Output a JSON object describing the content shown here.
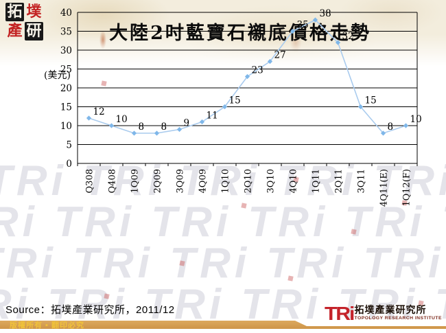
{
  "header": {
    "logo_chars": [
      "拓",
      "墣",
      "產",
      "研"
    ],
    "title": "大陸2吋藍寶石襯底價格走勢"
  },
  "chart_data": {
    "type": "line",
    "title": "大陸2吋藍寶石襯底價格走勢",
    "ylabel": "(美元)",
    "xlabel": "",
    "categories": [
      "Q308",
      "Q408",
      "1Q09",
      "2Q09",
      "3Q09",
      "4Q09",
      "1Q10",
      "2Q10",
      "3Q10",
      "4Q10",
      "1Q11",
      "2Q11",
      "3Q11",
      "4Q11(E)",
      "1Q12(F)"
    ],
    "values": [
      12,
      10,
      8,
      8,
      9,
      11,
      15,
      23,
      27,
      35,
      38,
      32,
      15,
      8,
      10
    ],
    "ylim": [
      0,
      40
    ],
    "ytick_step": 5,
    "grid": true,
    "legend": "none",
    "line_color": "#A9CBEE",
    "marker_color": "#7FB7E9",
    "axis_color": "#000000",
    "label_color": "#000000"
  },
  "watermark": {
    "text": "TRi"
  },
  "footer": {
    "source": "Source：拓墣產業研究所，2011/12",
    "copyright": "版權所有 ▪ 翻印必究",
    "logo": {
      "tri": "TRi",
      "cn_name": "拓墣產業研究所",
      "en_name": "TOPOLOGY RESEARCH INSTITUTE"
    }
  }
}
